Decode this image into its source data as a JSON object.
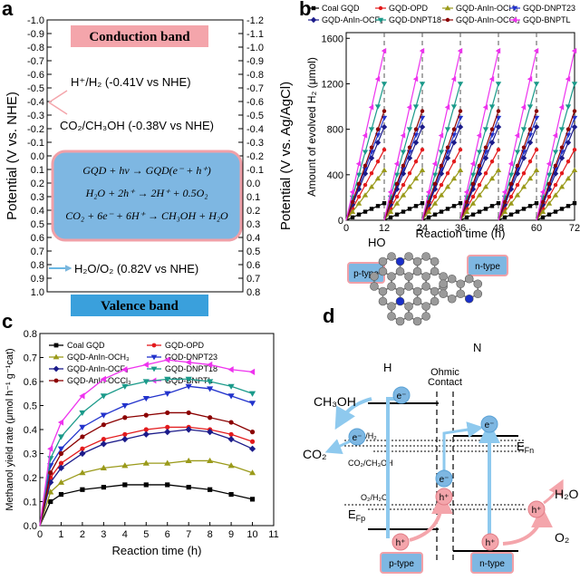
{
  "panel_a": {
    "letter": "a",
    "ylabel_left": "Potential (V vs. NHE)",
    "ylabel_right": "Potential (V vs. Ag/AgCl)",
    "left_ticks": [
      "-1.0",
      "-0.9",
      "-0.8",
      "-0.7",
      "-0.6",
      "-0.5",
      "-0.4",
      "-0.3",
      "-0.2",
      "-0.1",
      "0.0",
      "0.1",
      "0.2",
      "0.3",
      "0.4",
      "0.5",
      "0.6",
      "0.7",
      "0.8",
      "0.9",
      "1.0"
    ],
    "right_ticks": [
      "-1.2",
      "-1.1",
      "-1.0",
      "-0.9",
      "-0.8",
      "-0.7",
      "-0.6",
      "-0.5",
      "-0.4",
      "-0.3",
      "-0.2",
      "-0.1",
      "0.0",
      "0.1",
      "0.2",
      "0.3",
      "0.4",
      "0.5",
      "0.6",
      "0.7",
      "0.8"
    ],
    "conduction_band": "Conduction band",
    "valence_band": "Valence band",
    "h2_level": "H⁺/H₂ (-0.41V vs NHE)",
    "co2_level": "CO₂/CH₃OH (-0.38V vs NHE)",
    "o2_level": "H₂O/O₂ (0.82V vs NHE)",
    "eq1": "GQD + hv → GQD(e⁻ + h⁺)",
    "eq2": "H₂O + 2h⁺ → 2H⁺ + 0.5O₂",
    "eq3": "CO₂ + 6e⁻ + 6H⁺ → CH₃OH + H₂O",
    "colors": {
      "conduction": "#f4a5ab",
      "valence": "#3aa0dc",
      "box": "#7eb7e2",
      "box_border": "#f0a0a8"
    }
  },
  "panel_b": {
    "letter": "b",
    "ylabel": "Amount of evolved H₂ (μmol)",
    "xlabel": "Reaction time (h)",
    "x_ticks": [
      "0",
      "12",
      "24",
      "36",
      "48",
      "60",
      "72"
    ],
    "y_ticks": [
      "0",
      "400",
      "800",
      "1200",
      "1600"
    ]
  },
  "panel_c": {
    "letter": "c",
    "ylabel": "Methanol yield rate (μmol h⁻¹ g⁻¹cat)",
    "xlabel": "Reaction time (h)",
    "x_ticks": [
      "0",
      "1",
      "2",
      "3",
      "4",
      "5",
      "6",
      "7",
      "8",
      "9",
      "10",
      "11"
    ],
    "y_ticks": [
      "0.0",
      "0.1",
      "0.2",
      "0.3",
      "0.4",
      "0.5",
      "0.6",
      "0.7",
      "0.8"
    ]
  },
  "panel_d": {
    "letter": "d",
    "n_type_top": "n-type",
    "p_type_top": "p-type",
    "cooh": "HO",
    "n_label": "N",
    "cho": "H",
    "ch3oh": "CH₃OH",
    "co2": "CO₂",
    "h2o": "H₂O",
    "o2": "O₂",
    "ohmic": "Ohmic",
    "contact": "Contact",
    "h_h2": "H⁺/H₂",
    "co2_ch3oh": "CO₂/CH₃OH",
    "o2_h2o": "O₂/H₂O",
    "efn": "E",
    "efn_sub": "Fn",
    "efp": "E",
    "efp_sub": "Fp",
    "p_type": "p-type",
    "n_type": "n-type",
    "electron": "e⁻",
    "hole": "h⁺"
  },
  "chart_data": [
    {
      "type": "line",
      "panel": "b",
      "xlabel": "Reaction time (h)",
      "ylabel": "Amount of evolved H₂ (μmol)",
      "xlim": [
        0,
        72
      ],
      "ylim": [
        0,
        1650
      ],
      "cycle_boundaries": [
        12,
        24,
        36,
        48,
        60
      ],
      "cycle_x": [
        0,
        2,
        4,
        6,
        8,
        10,
        12
      ],
      "series": [
        {
          "name": "Coal GQD",
          "color": "#000000",
          "marker": "square",
          "end": 150
        },
        {
          "name": "GQD-OPD",
          "color": "#e31a1c",
          "marker": "circle",
          "end": 620
        },
        {
          "name": "GQD-AnIn-OCH₃",
          "color": "#9a9a1a",
          "marker": "tri-up",
          "end": 440
        },
        {
          "name": "GQD-DNPT23",
          "color": "#2233cc",
          "marker": "tri-down",
          "end": 900
        },
        {
          "name": "GQD-AnIn-OCF₃",
          "color": "#1b1b8a",
          "marker": "diamond",
          "end": 820
        },
        {
          "name": "GQD-DNPT18",
          "color": "#1a9a8a",
          "marker": "tri-down",
          "end": 1200
        },
        {
          "name": "GQD-AnIn-OCCl₃",
          "color": "#8b0000",
          "marker": "circle",
          "end": 960
        },
        {
          "name": "GQD-BNPTL",
          "color": "#ee33ee",
          "marker": "tri-left",
          "end": 1490
        }
      ]
    },
    {
      "type": "line",
      "panel": "c",
      "xlabel": "Reaction time (h)",
      "ylabel": "Methanol yield rate (μmol h⁻¹ g⁻¹cat)",
      "xlim": [
        0,
        11
      ],
      "ylim": [
        0,
        0.8
      ],
      "x": [
        0,
        0.5,
        1,
        2,
        3,
        4,
        5,
        6,
        7,
        8,
        9,
        10
      ],
      "series": [
        {
          "name": "Coal GQD",
          "color": "#000000",
          "marker": "square",
          "values": [
            0,
            0.1,
            0.13,
            0.15,
            0.16,
            0.17,
            0.17,
            0.17,
            0.16,
            0.15,
            0.13,
            0.11
          ]
        },
        {
          "name": "GQD-OPD",
          "color": "#e31a1c",
          "marker": "circle",
          "values": [
            0,
            0.2,
            0.26,
            0.32,
            0.36,
            0.38,
            0.4,
            0.41,
            0.41,
            0.4,
            0.38,
            0.35
          ]
        },
        {
          "name": "GQD-AnIn-OCH₃",
          "color": "#9a9a1a",
          "marker": "tri-up",
          "values": [
            0,
            0.14,
            0.18,
            0.22,
            0.24,
            0.25,
            0.26,
            0.26,
            0.27,
            0.27,
            0.25,
            0.22
          ]
        },
        {
          "name": "GQD-DNPT23",
          "color": "#2233cc",
          "marker": "tri-down",
          "values": [
            0,
            0.25,
            0.32,
            0.41,
            0.46,
            0.5,
            0.53,
            0.55,
            0.58,
            0.57,
            0.54,
            0.51
          ]
        },
        {
          "name": "GQD-AnIn-OCF₃",
          "color": "#1b1b8a",
          "marker": "diamond",
          "values": [
            0,
            0.18,
            0.24,
            0.3,
            0.34,
            0.36,
            0.38,
            0.39,
            0.4,
            0.39,
            0.36,
            0.32
          ]
        },
        {
          "name": "GQD-DNPT18",
          "color": "#1a9a8a",
          "marker": "tri-down",
          "values": [
            0,
            0.28,
            0.37,
            0.47,
            0.54,
            0.58,
            0.6,
            0.61,
            0.61,
            0.6,
            0.58,
            0.55
          ]
        },
        {
          "name": "GQD-AnIn-OCCl₃",
          "color": "#8b0000",
          "marker": "circle",
          "values": [
            0,
            0.22,
            0.3,
            0.37,
            0.42,
            0.45,
            0.46,
            0.47,
            0.47,
            0.45,
            0.43,
            0.39
          ]
        },
        {
          "name": "GQD-BNPTL",
          "color": "#ee33ee",
          "marker": "tri-left",
          "values": [
            0,
            0.32,
            0.43,
            0.54,
            0.61,
            0.65,
            0.67,
            0.69,
            0.68,
            0.67,
            0.65,
            0.64
          ]
        }
      ]
    }
  ]
}
